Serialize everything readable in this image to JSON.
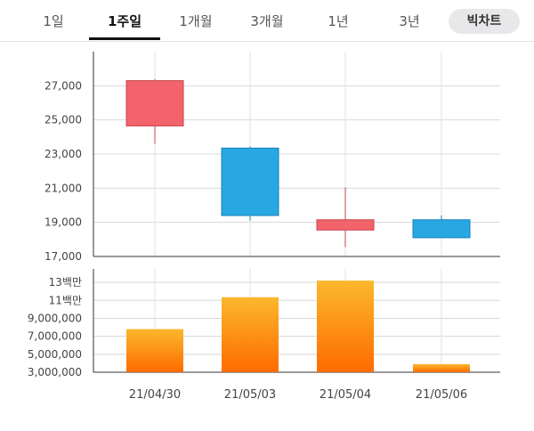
{
  "tabs": [
    {
      "label": "1일",
      "active": false
    },
    {
      "label": "1주일",
      "active": true
    },
    {
      "label": "1개월",
      "active": false
    },
    {
      "label": "3개월",
      "active": false
    },
    {
      "label": "1년",
      "active": false
    },
    {
      "label": "3년",
      "active": false
    }
  ],
  "bigchart_label": "빅차트",
  "chart_data": [
    {
      "type": "candlestick",
      "categories": [
        "21/04/30",
        "21/05/03",
        "21/05/04",
        "21/05/06"
      ],
      "candles": [
        {
          "date": "21/04/30",
          "open": 24650,
          "close": 27300,
          "high": 27400,
          "low": 23600
        },
        {
          "date": "21/05/03",
          "open": 23350,
          "close": 19400,
          "high": 23450,
          "low": 19100
        },
        {
          "date": "21/05/04",
          "open": 18550,
          "close": 19150,
          "high": 21050,
          "low": 17550
        },
        {
          "date": "21/05/06",
          "open": 19150,
          "close": 18100,
          "high": 19400,
          "low": 18100
        }
      ],
      "ylim": [
        17000,
        29000
      ],
      "yticks": [
        17000,
        19000,
        21000,
        23000,
        25000,
        27000
      ],
      "ytick_labels": [
        "17,000",
        "19,000",
        "21,000",
        "23,000",
        "25,000",
        "27,000"
      ],
      "colors": {
        "up": "#f2636b",
        "down": "#27a8e2"
      },
      "grid": true
    },
    {
      "type": "bar",
      "categories": [
        "21/04/30",
        "21/05/03",
        "21/05/04",
        "21/05/06"
      ],
      "values": [
        7800000,
        11350000,
        13200000,
        3900000
      ],
      "ylim": [
        3000000,
        14500000
      ],
      "yticks": [
        3000000,
        5000000,
        7000000,
        9000000,
        11000000,
        13000000
      ],
      "ytick_labels": [
        "3,000,000",
        "5,000,000",
        "7,000,000",
        "9,000,000",
        "11백만",
        "13백만"
      ],
      "colors": {
        "top": "#fbb82c",
        "bottom": "#fe6b00"
      },
      "grid": true
    }
  ]
}
